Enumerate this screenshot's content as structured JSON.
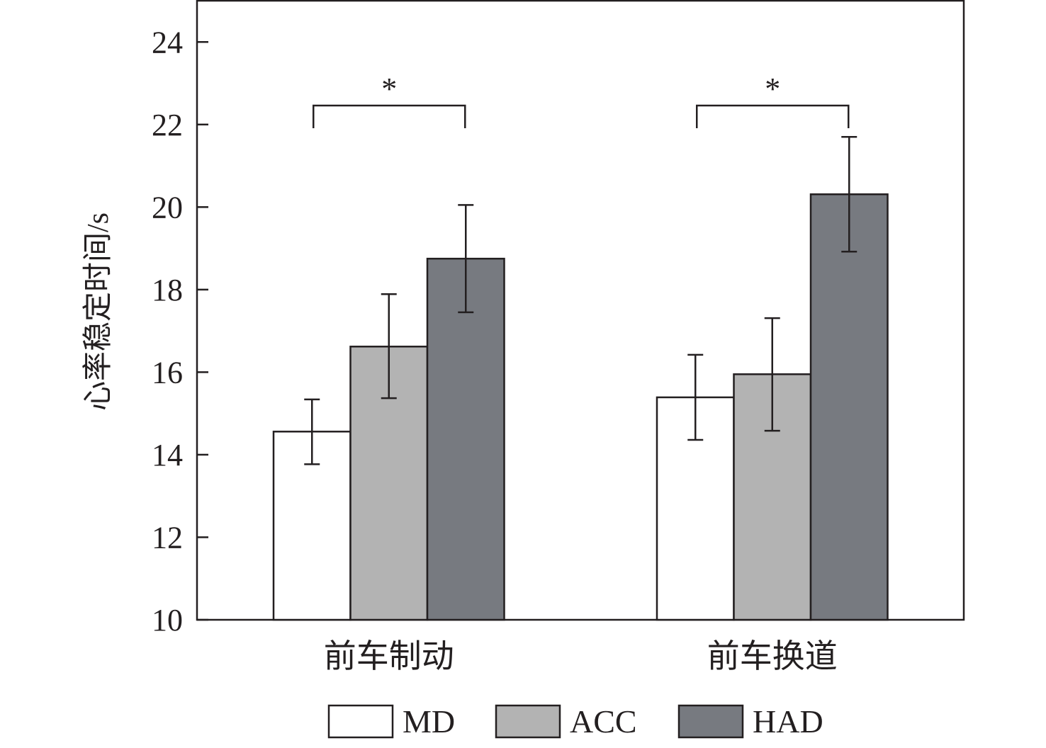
{
  "chart_data": {
    "type": "bar",
    "ylabel": "心率稳定时间/s",
    "xlabel": "",
    "ylim": [
      10,
      25
    ],
    "yticks": [
      10,
      12,
      14,
      16,
      18,
      20,
      22,
      24
    ],
    "categories": [
      "前车制动",
      "前车换道"
    ],
    "series": [
      {
        "name": "MD",
        "color": "#ffffff",
        "values": [
          14.56,
          15.39
        ],
        "err_high": [
          15.34,
          16.42
        ],
        "err_low": [
          13.77,
          14.36
        ]
      },
      {
        "name": "ACC",
        "color": "#b3b3b3",
        "values": [
          16.62,
          15.95
        ],
        "err_high": [
          17.89,
          17.31
        ],
        "err_low": [
          15.37,
          14.58
        ]
      },
      {
        "name": "HAD",
        "color": "#777a80",
        "values": [
          18.75,
          20.31
        ],
        "err_high": [
          20.05,
          21.7
        ],
        "err_low": [
          17.45,
          18.92
        ]
      }
    ],
    "significance": [
      {
        "category": "前车制动",
        "between": [
          "MD",
          "HAD"
        ],
        "label": "*"
      },
      {
        "category": "前车换道",
        "between": [
          "MD",
          "HAD"
        ],
        "label": "*"
      }
    ],
    "legend_position": "bottom",
    "grid": false
  }
}
